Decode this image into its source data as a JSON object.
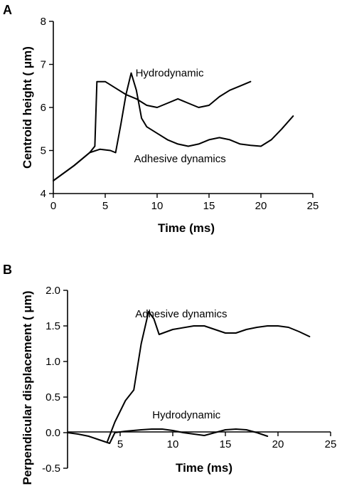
{
  "chart_data": [
    {
      "panel_label": "A",
      "type": "line",
      "xlabel": "Time (ms)",
      "ylabel": "Centroid height ( μm)",
      "xlim": [
        0,
        25
      ],
      "ylim": [
        4,
        8
      ],
      "xticks": [
        "0",
        "5",
        "10",
        "15",
        "20",
        "25"
      ],
      "yticks": [
        "4",
        "5",
        "6",
        "7",
        "8"
      ],
      "grid": false,
      "series": [
        {
          "name": "Hydrodynamic",
          "x": [
            0,
            2,
            3.5,
            4.0,
            4.2,
            5,
            6,
            7,
            8,
            9,
            10,
            11,
            12,
            13,
            14,
            15,
            16,
            17,
            18,
            19
          ],
          "y": [
            4.3,
            4.65,
            4.95,
            5.1,
            6.6,
            6.6,
            6.45,
            6.3,
            6.2,
            6.05,
            6.0,
            6.1,
            6.2,
            6.1,
            6.0,
            6.05,
            6.25,
            6.4,
            6.5,
            6.6
          ]
        },
        {
          "name": "Adhesive dynamics",
          "x": [
            0,
            2,
            3.5,
            4.5,
            5.5,
            6,
            6.5,
            7,
            7.5,
            8,
            8.5,
            9,
            10,
            11,
            12,
            13,
            14,
            15,
            16,
            17,
            18,
            19,
            20,
            21,
            22,
            23.1
          ],
          "y": [
            4.3,
            4.65,
            4.95,
            5.03,
            5.0,
            4.95,
            5.6,
            6.3,
            6.8,
            6.4,
            5.75,
            5.55,
            5.4,
            5.25,
            5.15,
            5.1,
            5.15,
            5.25,
            5.3,
            5.25,
            5.15,
            5.12,
            5.1,
            5.25,
            5.5,
            5.8
          ]
        }
      ],
      "annotations": [
        {
          "text": "Hydrodynamic",
          "x": 11.2,
          "y": 6.72
        },
        {
          "text": "Adhesive dynamics",
          "x": 12.2,
          "y": 4.73
        }
      ]
    },
    {
      "panel_label": "B",
      "type": "line",
      "xlabel": "Time (ms)",
      "ylabel": "Perpendicular displacement ( μm)",
      "xlim": [
        0,
        25
      ],
      "ylim": [
        -0.5,
        2.0
      ],
      "xticks": [
        "5",
        "10",
        "15",
        "20",
        "25"
      ],
      "yticks": [
        "-0.5",
        "0.0",
        "0.5",
        "1.0",
        "1.5",
        "2.0"
      ],
      "grid": false,
      "series": [
        {
          "name": "Adhesive dynamics",
          "x": [
            3.8,
            4.5,
            5.5,
            6.3,
            7.0,
            7.7,
            8.2,
            8.7,
            10,
            12,
            13,
            14,
            15,
            16,
            17,
            18,
            19,
            20,
            21,
            22,
            23
          ],
          "y": [
            -0.12,
            0.15,
            0.45,
            0.6,
            1.25,
            1.7,
            1.6,
            1.38,
            1.45,
            1.5,
            1.5,
            1.45,
            1.4,
            1.4,
            1.45,
            1.48,
            1.5,
            1.5,
            1.48,
            1.42,
            1.35
          ]
        },
        {
          "name": "Hydrodynamic",
          "x": [
            0,
            1,
            2,
            3,
            3.6,
            4.0,
            4.5,
            5.5,
            7,
            8,
            9,
            10,
            11,
            12,
            13,
            14,
            15,
            16,
            17,
            18,
            19
          ],
          "y": [
            0,
            -0.02,
            -0.05,
            -0.1,
            -0.13,
            -0.15,
            0.0,
            0.02,
            0.04,
            0.05,
            0.05,
            0.03,
            0.0,
            -0.02,
            -0.04,
            0.0,
            0.04,
            0.05,
            0.04,
            0.0,
            -0.05
          ]
        }
      ],
      "annotations": [
        {
          "text": "Adhesive dynamics",
          "x": 10.8,
          "y": 1.62
        },
        {
          "text": "Hydrodynamic",
          "x": 11.3,
          "y": 0.2
        }
      ]
    }
  ]
}
